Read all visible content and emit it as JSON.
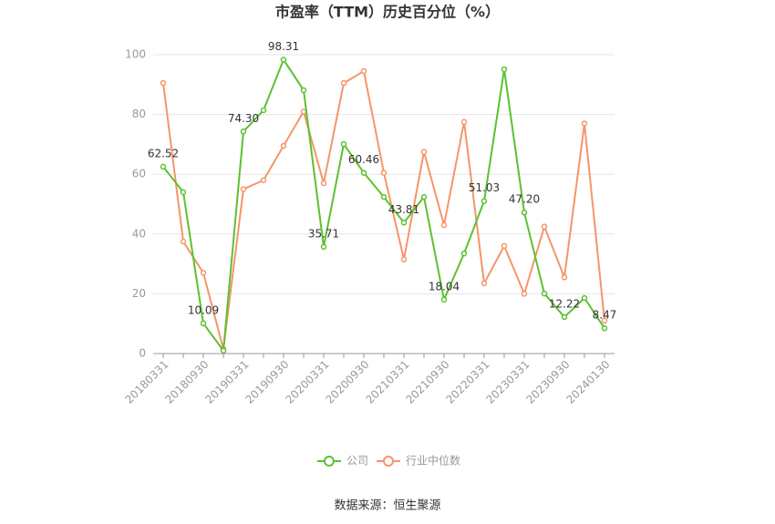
{
  "chart_data": {
    "type": "line",
    "title": "市盈率（TTM）历史百分位（%）",
    "categories": [
      "20180331",
      null,
      "20180930",
      null,
      "20190331",
      null,
      "20190930",
      null,
      "20200331",
      null,
      "20200930",
      null,
      "20210331",
      null,
      "20210930",
      null,
      "20220331",
      null,
      "20230331",
      null,
      "20230930",
      null,
      "20240130"
    ],
    "series": [
      {
        "name": "公司",
        "color": "#5cc12f",
        "values": [
          62.52,
          54,
          10.09,
          1,
          74.3,
          81.4,
          98.31,
          88.1,
          35.71,
          70.1,
          60.46,
          52.4,
          43.81,
          52.4,
          18.04,
          33.5,
          51.03,
          95.1,
          47.2,
          20.1,
          12.22,
          18.6,
          8.47
        ],
        "value_labels": [
          "62.52",
          null,
          "10.09",
          null,
          "74.30",
          null,
          "98.31",
          null,
          "35.71",
          null,
          "60.46",
          null,
          "43.81",
          null,
          "18.04",
          null,
          "51.03",
          null,
          "47.20",
          null,
          "12.22",
          null,
          "8.47"
        ]
      },
      {
        "name": "行业中位数",
        "color": "#f5956a",
        "values": [
          90.5,
          37.5,
          27,
          1.5,
          55,
          58,
          69.5,
          81,
          57,
          90.5,
          94.5,
          60.5,
          31.5,
          67.5,
          43,
          77.5,
          23.5,
          36,
          20,
          42.5,
          25.5,
          77,
          11
        ]
      }
    ],
    "ylim": [
      0,
      100
    ],
    "yticks": [
      0,
      20,
      40,
      60,
      80,
      100
    ],
    "grid": true,
    "legend": "bottom",
    "source": "数据来源：恒生聚源"
  }
}
